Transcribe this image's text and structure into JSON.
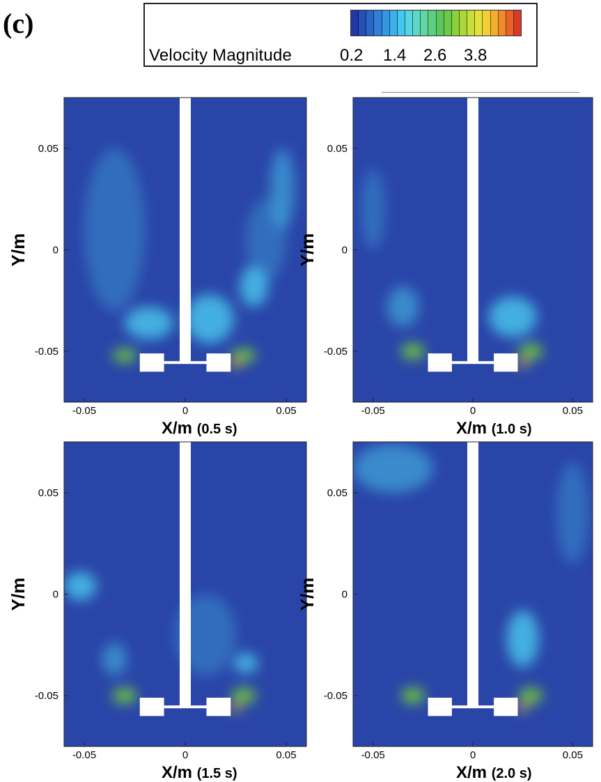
{
  "figure": {
    "panel_label": "(c)",
    "legend": {
      "title": "Velocity Magnitude",
      "ticks": [
        "0.2",
        "1.4",
        "2.6",
        "3.8"
      ],
      "colormap": [
        "#2238a6",
        "#2450b8",
        "#2a66c8",
        "#2f80d6",
        "#3596e2",
        "#3cb0ec",
        "#46c6ee",
        "#55d4e2",
        "#5ed8c4",
        "#62d6a0",
        "#5ecf7e",
        "#5cc65c",
        "#6cc84a",
        "#8cd03c",
        "#aad83a",
        "#c8df3a",
        "#e4e23a",
        "#f2cf36",
        "#f4ad30",
        "#f08a2a",
        "#e8622a",
        "#d83a28"
      ],
      "colors": {
        "background": "#2945a8",
        "shaft": "#ffffff",
        "jet_green": "#6fc43e",
        "wake_cyan": "#48c2ea",
        "hot": "#f4b030"
      }
    }
  },
  "chart_data": [
    {
      "type": "heatmap",
      "time": "0.5 s",
      "xlabel": "X/m",
      "xlabel_suffix": "(0.5 s)",
      "ylabel": "Y/m",
      "xlim": [
        -0.06,
        0.06
      ],
      "ylim": [
        -0.075,
        0.075
      ],
      "xticks": [
        "-0.05",
        "0",
        "0.05"
      ],
      "yticks": [
        "0.05",
        "0",
        "-0.05"
      ],
      "xtick_values": [
        -0.05,
        0,
        0.05
      ],
      "ytick_values": [
        0.05,
        0,
        -0.05
      ],
      "impeller": {
        "shaft_x": 0,
        "disk_y": -0.0555,
        "blade_x": [
          -0.0165,
          0.0165
        ],
        "blade_halfwidth": 0.006,
        "blade_y": [
          -0.06,
          -0.051
        ]
      },
      "features": [
        {
          "x": -0.03,
          "y": -0.052,
          "rx": 0.006,
          "ry": 0.0035,
          "level": "green"
        },
        {
          "x": 0.029,
          "y": -0.052,
          "rx": 0.006,
          "ry": 0.0035,
          "level": "green"
        },
        {
          "x": 0.025,
          "y": -0.056,
          "rx": 0.0025,
          "ry": 0.002,
          "level": "hot"
        },
        {
          "x": -0.018,
          "y": -0.036,
          "rx": 0.012,
          "ry": 0.008,
          "level": "cyan"
        },
        {
          "x": 0.012,
          "y": -0.034,
          "rx": 0.012,
          "ry": 0.012,
          "level": "cyan"
        },
        {
          "x": 0.034,
          "y": -0.018,
          "rx": 0.007,
          "ry": 0.01,
          "level": "cyan"
        },
        {
          "x": 0.048,
          "y": 0.03,
          "rx": 0.006,
          "ry": 0.02,
          "level": "light"
        },
        {
          "x": -0.035,
          "y": 0.01,
          "rx": 0.015,
          "ry": 0.04,
          "level": "faint"
        },
        {
          "x": 0.04,
          "y": 0.005,
          "rx": 0.01,
          "ry": 0.02,
          "level": "faint"
        }
      ]
    },
    {
      "type": "heatmap",
      "time": "1.0 s",
      "xlabel": "X/m",
      "xlabel_suffix": "(1.0 s)",
      "ylabel": "Y/m",
      "xlim": [
        -0.06,
        0.06
      ],
      "ylim": [
        -0.075,
        0.075
      ],
      "xticks": [
        "-0.05",
        "0",
        "0.05"
      ],
      "yticks": [
        "0.05",
        "0",
        "-0.05"
      ],
      "xtick_values": [
        -0.05,
        0,
        0.05
      ],
      "ytick_values": [
        0.05,
        0,
        -0.05
      ],
      "impeller": {
        "shaft_x": 0,
        "disk_y": -0.0555,
        "blade_x": [
          -0.0165,
          0.0165
        ],
        "blade_halfwidth": 0.006,
        "blade_y": [
          -0.06,
          -0.051
        ]
      },
      "features": [
        {
          "x": -0.03,
          "y": -0.05,
          "rx": 0.006,
          "ry": 0.004,
          "level": "green"
        },
        {
          "x": 0.029,
          "y": -0.05,
          "rx": 0.006,
          "ry": 0.004,
          "level": "green"
        },
        {
          "x": 0.025,
          "y": -0.056,
          "rx": 0.0025,
          "ry": 0.002,
          "level": "hot"
        },
        {
          "x": 0.02,
          "y": -0.033,
          "rx": 0.012,
          "ry": 0.01,
          "level": "cyan"
        },
        {
          "x": -0.035,
          "y": -0.028,
          "rx": 0.008,
          "ry": 0.01,
          "level": "light"
        },
        {
          "x": -0.05,
          "y": 0.02,
          "rx": 0.006,
          "ry": 0.02,
          "level": "faint"
        }
      ]
    },
    {
      "type": "heatmap",
      "time": "1.5 s",
      "xlabel": "X/m",
      "xlabel_suffix": "(1.5 s)",
      "ylabel": "Y/m",
      "xlim": [
        -0.06,
        0.06
      ],
      "ylim": [
        -0.075,
        0.075
      ],
      "xticks": [
        "-0.05",
        "0",
        "0.05"
      ],
      "yticks": [
        "0.05",
        "0",
        "-0.05"
      ],
      "xtick_values": [
        -0.05,
        0,
        0.05
      ],
      "ytick_values": [
        0.05,
        0,
        -0.05
      ],
      "impeller": {
        "shaft_x": 0,
        "disk_y": -0.0555,
        "blade_x": [
          -0.0165,
          0.0165
        ],
        "blade_halfwidth": 0.006,
        "blade_y": [
          -0.06,
          -0.051
        ]
      },
      "features": [
        {
          "x": -0.03,
          "y": -0.05,
          "rx": 0.006,
          "ry": 0.004,
          "level": "green"
        },
        {
          "x": 0.029,
          "y": -0.05,
          "rx": 0.006,
          "ry": 0.004,
          "level": "green"
        },
        {
          "x": 0.025,
          "y": -0.056,
          "rx": 0.0025,
          "ry": 0.002,
          "level": "hot"
        },
        {
          "x": -0.052,
          "y": 0.004,
          "rx": 0.008,
          "ry": 0.007,
          "level": "cyan"
        },
        {
          "x": 0.03,
          "y": -0.034,
          "rx": 0.006,
          "ry": 0.005,
          "level": "cyan"
        },
        {
          "x": -0.035,
          "y": -0.032,
          "rx": 0.006,
          "ry": 0.008,
          "level": "light"
        },
        {
          "x": 0.01,
          "y": -0.02,
          "rx": 0.015,
          "ry": 0.02,
          "level": "faint"
        }
      ]
    },
    {
      "type": "heatmap",
      "time": "2.0 s",
      "xlabel": "X/m",
      "xlabel_suffix": "(2.0 s)",
      "ylabel": "Y/m",
      "xlim": [
        -0.06,
        0.06
      ],
      "ylim": [
        -0.075,
        0.075
      ],
      "xticks": [
        "-0.05",
        "0",
        "0.05"
      ],
      "yticks": [
        "0.05",
        "0",
        "-0.05"
      ],
      "xtick_values": [
        -0.05,
        0,
        0.05
      ],
      "ytick_values": [
        0.05,
        0,
        -0.05
      ],
      "impeller": {
        "shaft_x": 0,
        "disk_y": -0.0555,
        "blade_x": [
          -0.0165,
          0.0165
        ],
        "blade_halfwidth": 0.006,
        "blade_y": [
          -0.06,
          -0.051
        ]
      },
      "features": [
        {
          "x": -0.03,
          "y": -0.05,
          "rx": 0.006,
          "ry": 0.004,
          "level": "green"
        },
        {
          "x": 0.029,
          "y": -0.05,
          "rx": 0.006,
          "ry": 0.004,
          "level": "green"
        },
        {
          "x": 0.025,
          "y": -0.056,
          "rx": 0.0025,
          "ry": 0.002,
          "level": "hot"
        },
        {
          "x": 0.025,
          "y": -0.022,
          "rx": 0.008,
          "ry": 0.014,
          "level": "cyan"
        },
        {
          "x": -0.04,
          "y": 0.062,
          "rx": 0.02,
          "ry": 0.012,
          "level": "light"
        },
        {
          "x": 0.05,
          "y": 0.04,
          "rx": 0.008,
          "ry": 0.025,
          "level": "faint"
        }
      ]
    }
  ]
}
